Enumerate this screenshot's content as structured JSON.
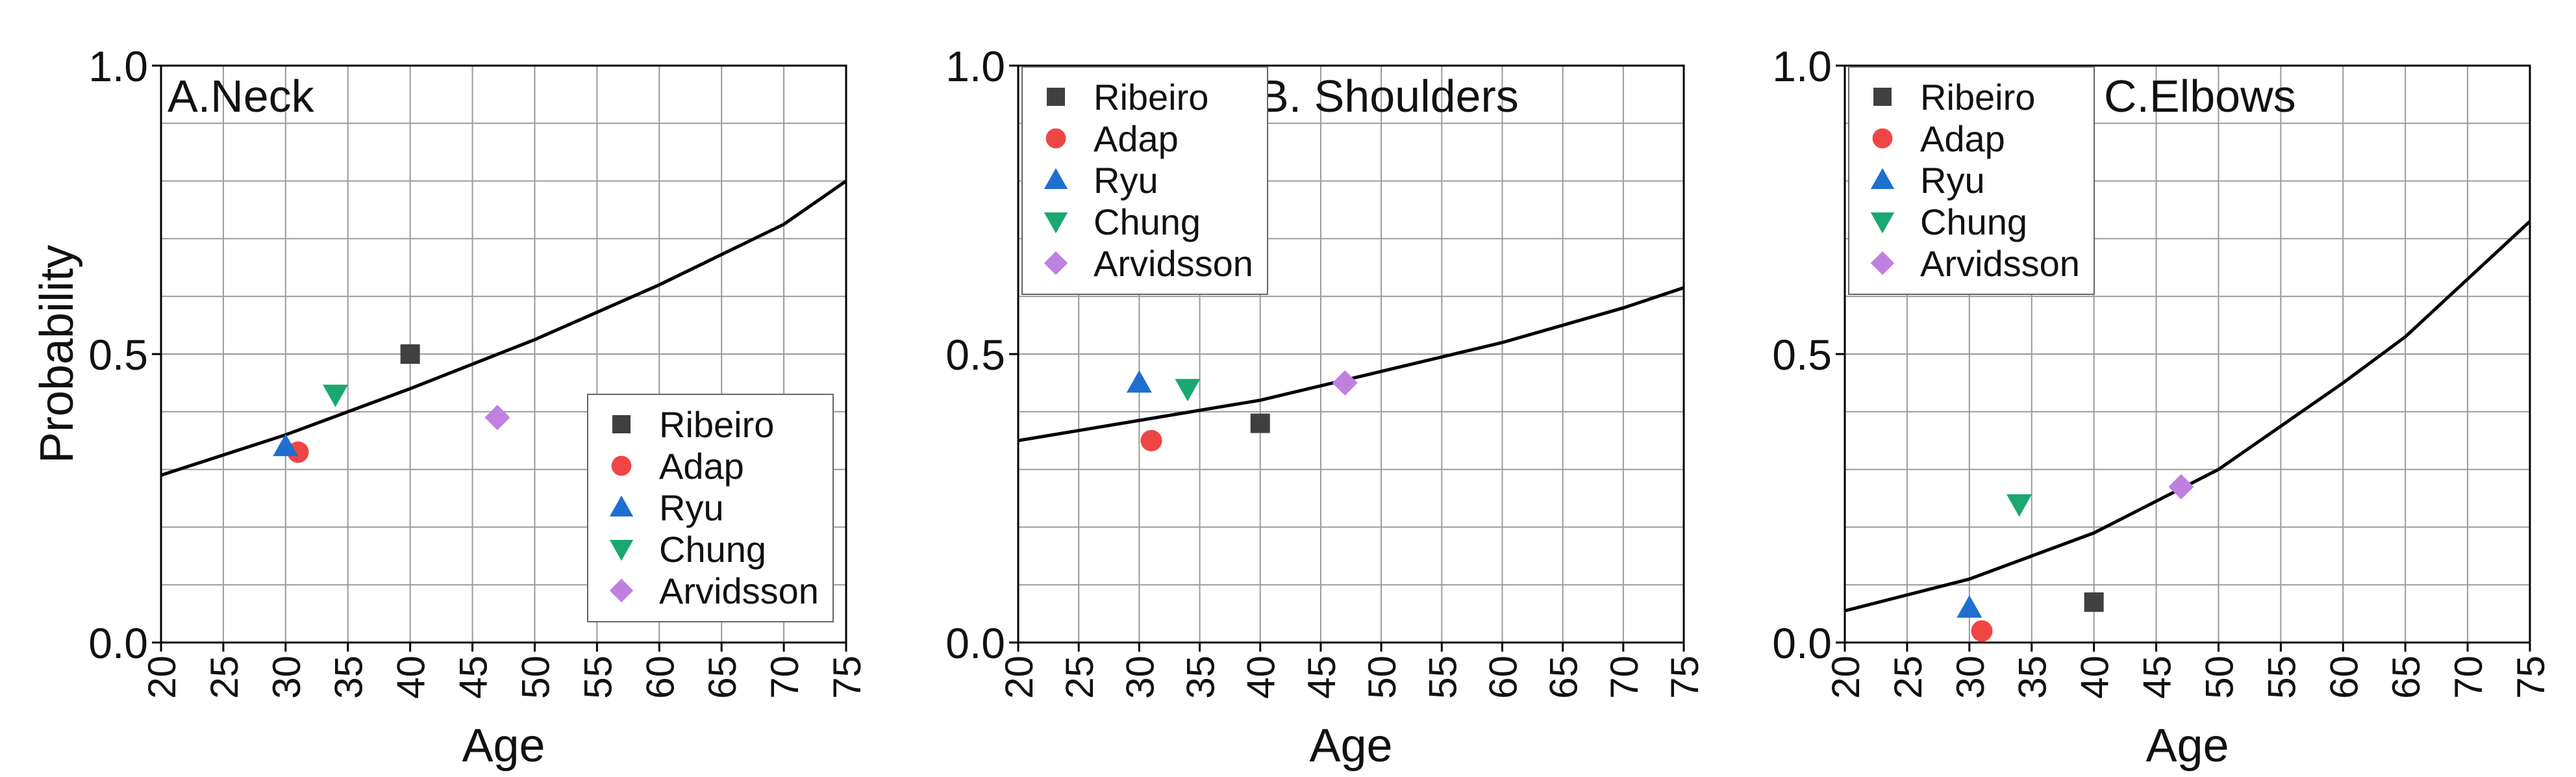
{
  "chart_data": [
    {
      "type": "scatter",
      "title": "A.Neck",
      "xlabel": "Age",
      "ylabel": "Probability",
      "xlim": [
        20,
        75
      ],
      "xticks": [
        20,
        25,
        30,
        35,
        40,
        45,
        50,
        55,
        60,
        65,
        70,
        75
      ],
      "ylim": [
        0,
        1
      ],
      "yticks": [
        {
          "value": 0,
          "label": "0.0"
        },
        {
          "value": 0.5,
          "label": "0.5"
        },
        {
          "value": 1,
          "label": "1.0"
        }
      ],
      "minor_yticks": [
        0.1,
        0.2,
        0.3,
        0.4,
        0.6,
        0.7,
        0.8,
        0.9
      ],
      "grid": true,
      "legend": "lower right",
      "series": [
        {
          "name": "Ribeiro",
          "color": "#404040",
          "marker": "square",
          "x": [
            40
          ],
          "values": [
            0.5
          ]
        },
        {
          "name": "Adap",
          "color": "#f04545",
          "marker": "circle",
          "x": [
            31
          ],
          "values": [
            0.33
          ]
        },
        {
          "name": "Ryu",
          "color": "#1f6fd0",
          "marker": "triangle-up",
          "x": [
            30
          ],
          "values": [
            0.34
          ]
        },
        {
          "name": "Chung",
          "color": "#1aa870",
          "marker": "triangle-down",
          "x": [
            34
          ],
          "values": [
            0.43
          ]
        },
        {
          "name": "Arvidsson",
          "color": "#c080e0",
          "marker": "diamond",
          "x": [
            47
          ],
          "values": [
            0.39
          ]
        }
      ],
      "curve": {
        "color": "#000000",
        "x": [
          20,
          30,
          40,
          50,
          60,
          70,
          75
        ],
        "values": [
          0.29,
          0.36,
          0.44,
          0.525,
          0.62,
          0.725,
          0.8
        ]
      }
    },
    {
      "type": "scatter",
      "title": "B. Shoulders",
      "xlabel": "Age",
      "xlim": [
        20,
        75
      ],
      "xticks": [
        20,
        25,
        30,
        35,
        40,
        45,
        50,
        55,
        60,
        65,
        70,
        75
      ],
      "ylim": [
        0,
        1
      ],
      "yticks": [
        {
          "value": 0,
          "label": "0.0"
        },
        {
          "value": 0.5,
          "label": "0.5"
        },
        {
          "value": 1,
          "label": "1.0"
        }
      ],
      "minor_yticks": [
        0.1,
        0.2,
        0.3,
        0.4,
        0.6,
        0.7,
        0.8,
        0.9
      ],
      "grid": true,
      "legend": "upper left",
      "series": [
        {
          "name": "Ribeiro",
          "color": "#404040",
          "marker": "square",
          "x": [
            40
          ],
          "values": [
            0.38
          ]
        },
        {
          "name": "Adap",
          "color": "#f04545",
          "marker": "circle",
          "x": [
            31
          ],
          "values": [
            0.35
          ]
        },
        {
          "name": "Ryu",
          "color": "#1f6fd0",
          "marker": "triangle-up",
          "x": [
            30
          ],
          "values": [
            0.45
          ]
        },
        {
          "name": "Chung",
          "color": "#1aa870",
          "marker": "triangle-down",
          "x": [
            34
          ],
          "values": [
            0.44
          ]
        },
        {
          "name": "Arvidsson",
          "color": "#c080e0",
          "marker": "diamond",
          "x": [
            47
          ],
          "values": [
            0.45
          ]
        }
      ],
      "curve": {
        "color": "#000000",
        "x": [
          20,
          30,
          40,
          50,
          60,
          70,
          75
        ],
        "values": [
          0.35,
          0.385,
          0.42,
          0.47,
          0.52,
          0.58,
          0.615
        ]
      }
    },
    {
      "type": "scatter",
      "title": "C.Elbows",
      "xlabel": "Age",
      "xlim": [
        20,
        75
      ],
      "xticks": [
        20,
        25,
        30,
        35,
        40,
        45,
        50,
        55,
        60,
        65,
        70,
        75
      ],
      "ylim": [
        0,
        1
      ],
      "yticks": [
        {
          "value": 0,
          "label": "0.0"
        },
        {
          "value": 0.5,
          "label": "0.5"
        },
        {
          "value": 1,
          "label": "1.0"
        }
      ],
      "minor_yticks": [
        0.1,
        0.2,
        0.3,
        0.4,
        0.6,
        0.7,
        0.8,
        0.9
      ],
      "grid": true,
      "legend": "upper left",
      "series": [
        {
          "name": "Ribeiro",
          "color": "#404040",
          "marker": "square",
          "x": [
            40
          ],
          "values": [
            0.07
          ]
        },
        {
          "name": "Adap",
          "color": "#f04545",
          "marker": "circle",
          "x": [
            31
          ],
          "values": [
            0.02
          ]
        },
        {
          "name": "Ryu",
          "color": "#1f6fd0",
          "marker": "triangle-up",
          "x": [
            30
          ],
          "values": [
            0.06
          ]
        },
        {
          "name": "Chung",
          "color": "#1aa870",
          "marker": "triangle-down",
          "x": [
            34
          ],
          "values": [
            0.24
          ]
        },
        {
          "name": "Arvidsson",
          "color": "#c080e0",
          "marker": "diamond",
          "x": [
            47
          ],
          "values": [
            0.27
          ]
        }
      ],
      "curve": {
        "color": "#000000",
        "x": [
          20,
          30,
          40,
          50,
          60,
          65,
          70,
          75
        ],
        "values": [
          0.055,
          0.11,
          0.19,
          0.3,
          0.45,
          0.53,
          0.63,
          0.73
        ]
      }
    }
  ]
}
